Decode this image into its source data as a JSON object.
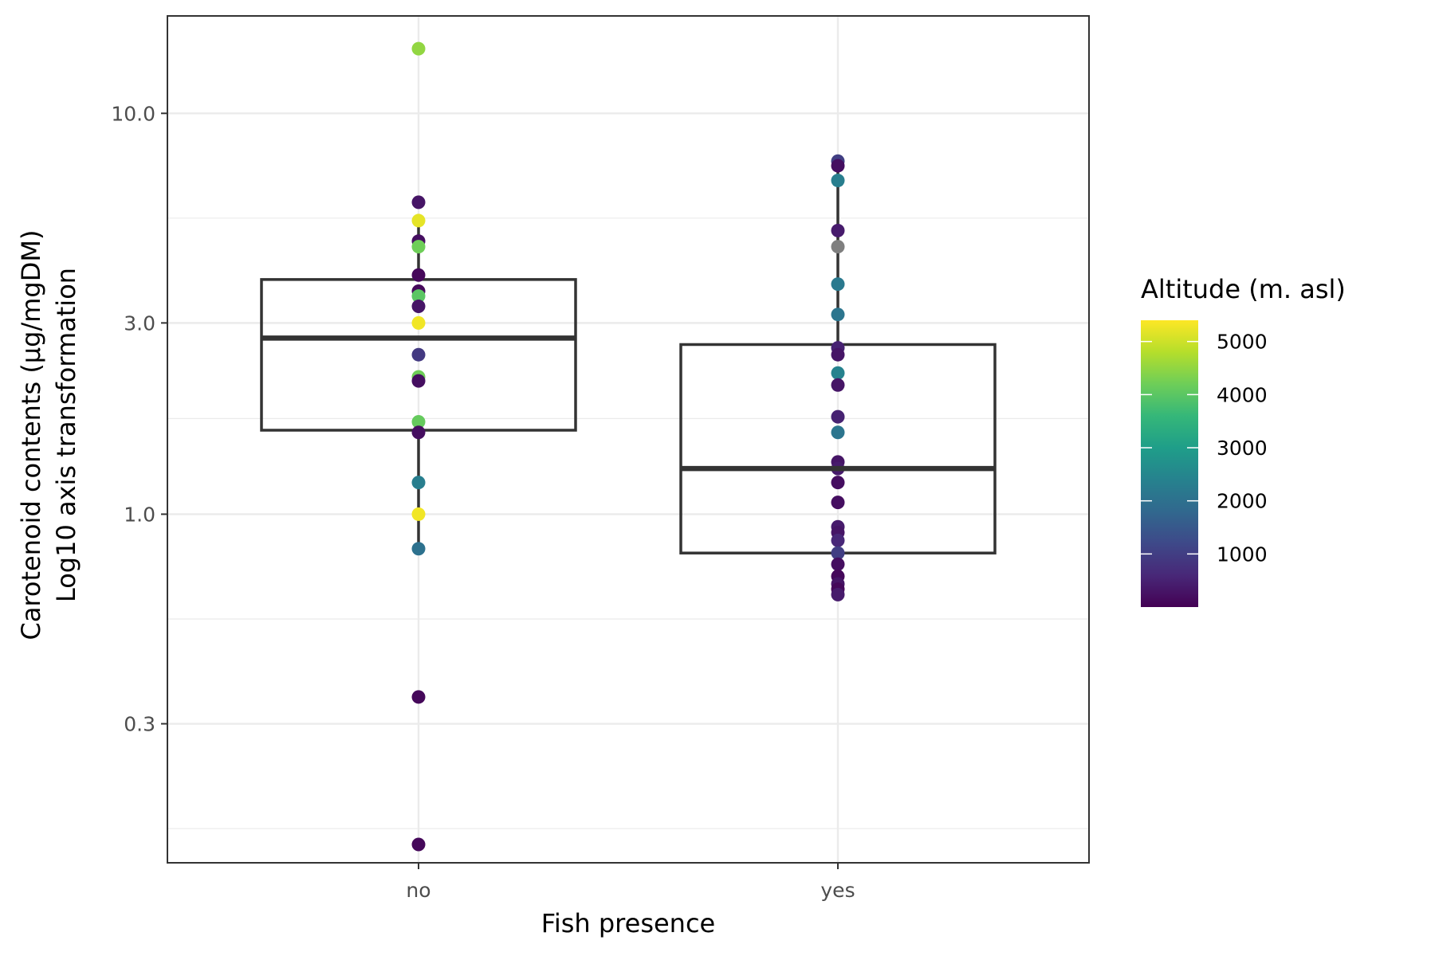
{
  "chart_data": {
    "type": "boxplot",
    "xlabel": "Fish presence",
    "ylabel_lines": [
      "Carotenoid contents (µg/mgDM)",
      "Log10 axis transformation"
    ],
    "y_scale": "log10",
    "ylim": [
      0.135,
      17.5
    ],
    "y_ticks": [
      0.3,
      1.0,
      3.0,
      10.0
    ],
    "y_tick_labels": [
      "0.3",
      "1.0",
      "3.0",
      "10.0"
    ],
    "grid": true,
    "categories": [
      "no",
      "yes"
    ],
    "boxes": [
      {
        "category": "no",
        "lower": 1.62,
        "q1": 1.62,
        "median": 2.75,
        "q3": 3.85,
        "upper": 3.85,
        "whisker_low": 0.82,
        "whisker_high": 5.5
      },
      {
        "category": "yes",
        "lower": 0.8,
        "q1": 0.8,
        "median": 1.3,
        "q3": 2.65,
        "upper": 2.65,
        "whisker_low": 0.63,
        "whisker_high": 7.6
      }
    ],
    "points": [
      {
        "category": "no",
        "value": 14.5,
        "altitude": 4500
      },
      {
        "category": "no",
        "value": 6.0,
        "altitude": 300
      },
      {
        "category": "no",
        "value": 5.4,
        "altitude": 5200
      },
      {
        "category": "no",
        "value": 4.8,
        "altitude": 200
      },
      {
        "category": "no",
        "value": 4.65,
        "altitude": 4200
      },
      {
        "category": "no",
        "value": 3.95,
        "altitude": 100
      },
      {
        "category": "no",
        "value": 3.6,
        "altitude": 100
      },
      {
        "category": "no",
        "value": 3.5,
        "altitude": 4000
      },
      {
        "category": "no",
        "value": 3.3,
        "altitude": 300
      },
      {
        "category": "no",
        "value": 3.0,
        "altitude": 5300
      },
      {
        "category": "no",
        "value": 2.5,
        "altitude": 900
      },
      {
        "category": "no",
        "value": 2.2,
        "altitude": 4200
      },
      {
        "category": "no",
        "value": 2.15,
        "altitude": 200
      },
      {
        "category": "no",
        "value": 1.7,
        "altitude": 4100
      },
      {
        "category": "no",
        "value": 1.6,
        "altitude": 200
      },
      {
        "category": "no",
        "value": 1.2,
        "altitude": 2300
      },
      {
        "category": "no",
        "value": 1.0,
        "altitude": 5300
      },
      {
        "category": "no",
        "value": 0.82,
        "altitude": 2000
      },
      {
        "category": "no",
        "value": 0.35,
        "altitude": 100
      },
      {
        "category": "no",
        "value": 0.15,
        "altitude": 100
      },
      {
        "category": "yes",
        "value": 7.6,
        "altitude": 1000
      },
      {
        "category": "yes",
        "value": 7.4,
        "altitude": 200
      },
      {
        "category": "yes",
        "value": 6.8,
        "altitude": 2300
      },
      {
        "category": "yes",
        "value": 5.1,
        "altitude": 400
      },
      {
        "category": "yes",
        "value": 4.65,
        "altitude": null
      },
      {
        "category": "yes",
        "value": 3.75,
        "altitude": 2200
      },
      {
        "category": "yes",
        "value": 3.15,
        "altitude": 2100
      },
      {
        "category": "yes",
        "value": 2.6,
        "altitude": 500
      },
      {
        "category": "yes",
        "value": 2.5,
        "altitude": 300
      },
      {
        "category": "yes",
        "value": 2.25,
        "altitude": 2400
      },
      {
        "category": "yes",
        "value": 2.1,
        "altitude": 300
      },
      {
        "category": "yes",
        "value": 1.75,
        "altitude": 500
      },
      {
        "category": "yes",
        "value": 1.6,
        "altitude": 2100
      },
      {
        "category": "yes",
        "value": 1.35,
        "altitude": 300
      },
      {
        "category": "yes",
        "value": 1.3,
        "altitude": 400
      },
      {
        "category": "yes",
        "value": 1.2,
        "altitude": 200
      },
      {
        "category": "yes",
        "value": 1.07,
        "altitude": 200
      },
      {
        "category": "yes",
        "value": 0.93,
        "altitude": 400
      },
      {
        "category": "yes",
        "value": 0.9,
        "altitude": 300
      },
      {
        "category": "yes",
        "value": 0.86,
        "altitude": 600
      },
      {
        "category": "yes",
        "value": 0.8,
        "altitude": 1000
      },
      {
        "category": "yes",
        "value": 0.75,
        "altitude": 200
      },
      {
        "category": "yes",
        "value": 0.7,
        "altitude": 100
      },
      {
        "category": "yes",
        "value": 0.67,
        "altitude": 300
      },
      {
        "category": "yes",
        "value": 0.65,
        "altitude": 100
      },
      {
        "category": "yes",
        "value": 0.63,
        "altitude": 400
      }
    ],
    "legend": {
      "title": "Altitude (m. asl)",
      "placement": "right",
      "range": [
        0,
        5400
      ],
      "ticks": [
        1000,
        2000,
        3000,
        4000,
        5000
      ],
      "tick_labels": [
        "1000",
        "2000",
        "3000",
        "4000",
        "5000"
      ],
      "na_color": "#7f7f7f",
      "colors": [
        "#440154",
        "#482878",
        "#3e4989",
        "#31688e",
        "#26828e",
        "#1f9e89",
        "#35b779",
        "#6ece58",
        "#b5de2b",
        "#fde725"
      ]
    }
  }
}
